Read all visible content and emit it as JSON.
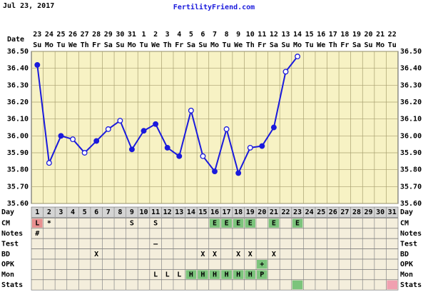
{
  "chart_data": {
    "type": "line",
    "header_date": "Jul 23, 2017",
    "site": "FertilityFriend.com",
    "date_label": "Date",
    "day_label": "Day",
    "dates": [
      "23",
      "24",
      "25",
      "26",
      "27",
      "28",
      "29",
      "30",
      "31",
      "1",
      "2",
      "3",
      "4",
      "5",
      "6",
      "7",
      "8",
      "9",
      "10",
      "11",
      "12",
      "13",
      "14",
      "15",
      "16",
      "17",
      "18",
      "19",
      "20",
      "21",
      "22"
    ],
    "weekdays": [
      "Su",
      "Mo",
      "Tu",
      "We",
      "Th",
      "Fr",
      "Sa",
      "Su",
      "Mo",
      "Tu",
      "We",
      "Th",
      "Fr",
      "Sa",
      "Su",
      "Mo",
      "Tu",
      "We",
      "Th",
      "Fr",
      "Sa",
      "Su",
      "Mo",
      "Tu",
      "We",
      "Th",
      "Fr",
      "Sa",
      "Su",
      "Mo",
      "Tu"
    ],
    "categories": [
      1,
      2,
      3,
      4,
      5,
      6,
      7,
      8,
      9,
      10,
      11,
      12,
      13,
      14,
      15,
      16,
      17,
      18,
      19,
      20,
      21,
      22,
      23,
      24,
      25,
      26,
      27,
      28,
      29,
      30,
      31
    ],
    "series": [
      {
        "name": "Temperature",
        "color": "#1a1adc",
        "values": [
          36.42,
          35.84,
          36.0,
          35.98,
          35.9,
          35.97,
          36.04,
          36.09,
          35.92,
          36.03,
          36.07,
          35.93,
          35.88,
          36.15,
          35.88,
          35.79,
          36.04,
          35.78,
          35.93,
          35.94,
          36.05,
          36.38,
          36.47,
          null,
          null,
          null,
          null,
          null,
          null,
          null,
          null
        ],
        "marker_styles": [
          "filled",
          "open",
          "filled",
          "open",
          "open",
          "filled",
          "open",
          "open",
          "filled",
          "filled",
          "filled",
          "filled",
          "filled",
          "open",
          "open",
          "filled",
          "open",
          "filled",
          "open",
          "filled",
          "filled",
          "open",
          "open",
          null,
          null,
          null,
          null,
          null,
          null,
          null,
          null
        ]
      }
    ],
    "ylim": [
      35.6,
      36.5
    ],
    "yticks": [
      {
        "value": 35.6,
        "label": "35.60"
      },
      {
        "value": 35.7,
        "label": "35.70"
      },
      {
        "value": 35.8,
        "label": "35.80"
      },
      {
        "value": 35.9,
        "label": "35.90"
      },
      {
        "value": 36.0,
        "label": "36.00"
      },
      {
        "value": 36.1,
        "label": "36.10"
      },
      {
        "value": 36.2,
        "label": "36.20"
      },
      {
        "value": 36.3,
        "label": "36.30"
      },
      {
        "value": 36.4,
        "label": "36.40"
      },
      {
        "value": 36.5,
        "label": "36.50"
      }
    ],
    "grid": true,
    "rows": [
      {
        "label": "CM",
        "cells": [
          "L",
          "*",
          null,
          null,
          null,
          null,
          null,
          null,
          "S",
          null,
          "S",
          null,
          null,
          null,
          null,
          "E",
          "E",
          "E",
          "E",
          null,
          "E",
          null,
          "E",
          null,
          null,
          null,
          null,
          null,
          null,
          null,
          null
        ],
        "cell_colors": [
          "#e89090",
          null,
          null,
          null,
          null,
          null,
          null,
          null,
          null,
          null,
          null,
          null,
          null,
          null,
          null,
          "#7cc47c",
          "#7cc47c",
          "#7cc47c",
          "#7cc47c",
          null,
          "#7cc47c",
          null,
          "#7cc47c",
          null,
          null,
          null,
          null,
          null,
          null,
          null,
          null
        ]
      },
      {
        "label": "Notes",
        "cells": [
          "#",
          null,
          null,
          null,
          null,
          null,
          null,
          null,
          null,
          null,
          null,
          null,
          null,
          null,
          null,
          null,
          null,
          null,
          null,
          null,
          null,
          null,
          null,
          null,
          null,
          null,
          null,
          null,
          null,
          null,
          null
        ],
        "cell_colors": [
          null,
          null,
          null,
          null,
          null,
          null,
          null,
          null,
          null,
          null,
          null,
          null,
          null,
          null,
          null,
          null,
          null,
          null,
          null,
          null,
          null,
          null,
          null,
          null,
          null,
          null,
          null,
          null,
          null,
          null,
          null
        ]
      },
      {
        "label": "Test",
        "cells": [
          null,
          null,
          null,
          null,
          null,
          null,
          null,
          null,
          null,
          null,
          "–",
          null,
          null,
          null,
          null,
          null,
          null,
          null,
          null,
          null,
          null,
          null,
          null,
          null,
          null,
          null,
          null,
          null,
          null,
          null,
          null
        ],
        "cell_colors": [
          null,
          null,
          null,
          null,
          null,
          null,
          null,
          null,
          null,
          null,
          null,
          null,
          null,
          null,
          null,
          null,
          null,
          null,
          null,
          null,
          null,
          null,
          null,
          null,
          null,
          null,
          null,
          null,
          null,
          null,
          null
        ]
      },
      {
        "label": "BD",
        "cells": [
          null,
          null,
          null,
          null,
          null,
          "X",
          null,
          null,
          null,
          null,
          null,
          null,
          null,
          null,
          "X",
          "X",
          null,
          "X",
          "X",
          null,
          "X",
          null,
          null,
          null,
          null,
          null,
          null,
          null,
          null,
          null,
          null
        ],
        "cell_colors": [
          null,
          null,
          null,
          null,
          null,
          null,
          null,
          null,
          null,
          null,
          null,
          null,
          null,
          null,
          null,
          null,
          null,
          null,
          null,
          null,
          null,
          null,
          null,
          null,
          null,
          null,
          null,
          null,
          null,
          null,
          null
        ]
      },
      {
        "label": "OPK",
        "cells": [
          null,
          null,
          null,
          null,
          null,
          null,
          null,
          null,
          null,
          null,
          null,
          null,
          null,
          null,
          null,
          null,
          null,
          null,
          null,
          "+",
          null,
          null,
          null,
          null,
          null,
          null,
          null,
          null,
          null,
          null,
          null
        ],
        "cell_colors": [
          null,
          null,
          null,
          null,
          null,
          null,
          null,
          null,
          null,
          null,
          null,
          null,
          null,
          null,
          null,
          null,
          null,
          null,
          null,
          "#7cc47c",
          null,
          null,
          null,
          null,
          null,
          null,
          null,
          null,
          null,
          null,
          null
        ]
      },
      {
        "label": "Mon",
        "cells": [
          null,
          null,
          null,
          null,
          null,
          null,
          null,
          null,
          null,
          null,
          "L",
          "L",
          "L",
          "H",
          "H",
          "H",
          "H",
          "H",
          "H",
          "P",
          null,
          null,
          null,
          null,
          null,
          null,
          null,
          null,
          null,
          null,
          null
        ],
        "cell_colors": [
          null,
          null,
          null,
          null,
          null,
          null,
          null,
          null,
          null,
          null,
          null,
          null,
          null,
          "#7cc47c",
          "#7cc47c",
          "#7cc47c",
          "#7cc47c",
          "#7cc47c",
          "#7cc47c",
          "#7cc47c",
          null,
          null,
          null,
          null,
          null,
          null,
          null,
          null,
          null,
          null,
          null
        ]
      },
      {
        "label": "Stats",
        "cells": [
          null,
          null,
          null,
          null,
          null,
          null,
          null,
          null,
          null,
          null,
          null,
          null,
          null,
          null,
          null,
          null,
          null,
          null,
          null,
          null,
          null,
          null,
          null,
          null,
          null,
          null,
          null,
          null,
          null,
          null,
          null
        ],
        "cell_colors": [
          null,
          null,
          null,
          null,
          null,
          null,
          null,
          null,
          null,
          null,
          null,
          null,
          null,
          null,
          null,
          null,
          null,
          null,
          null,
          null,
          null,
          null,
          "#7cc47c",
          null,
          null,
          null,
          null,
          null,
          null,
          null,
          "#f0a0b0"
        ]
      }
    ]
  }
}
